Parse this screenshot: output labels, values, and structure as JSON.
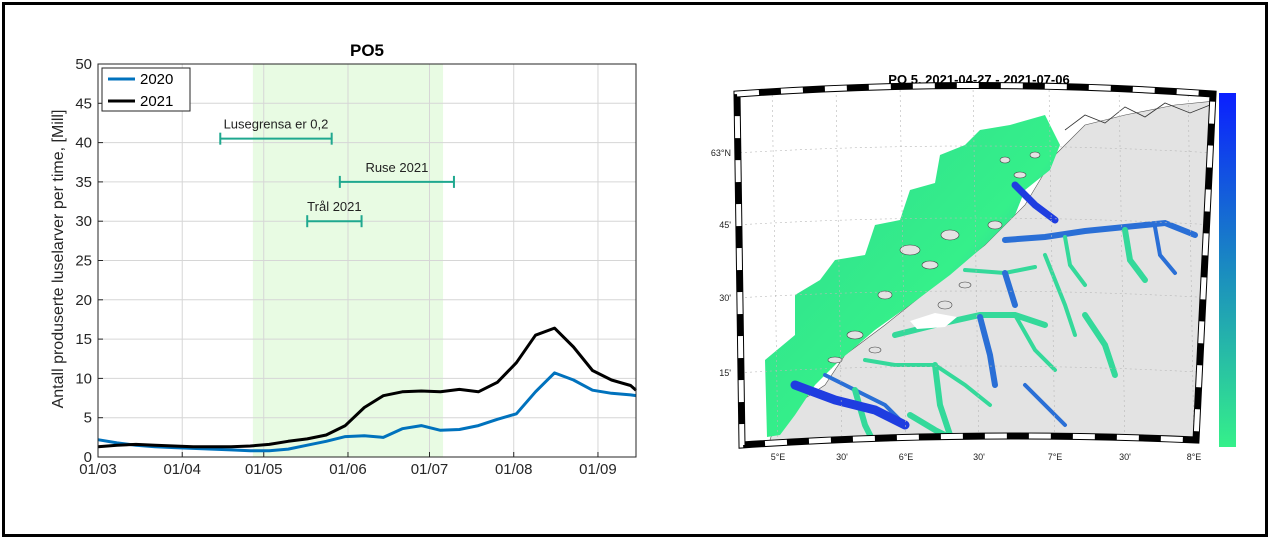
{
  "chart_data": [
    {
      "type": "line",
      "title": "PO5",
      "xlabel": "",
      "ylabel": "Antall produserte luselarver per time, [Mill]",
      "xtick_labels": [
        "01/03",
        "01/04",
        "01/05",
        "01/06",
        "01/07",
        "01/08",
        "01/09"
      ],
      "x_ticks": [
        "03-01",
        "04-01",
        "05-01",
        "06-01",
        "07-01",
        "08-01",
        "09-01"
      ],
      "xlim": [
        "03-01",
        "09-15"
      ],
      "ylim": [
        0,
        50
      ],
      "yticks": [
        0,
        5,
        10,
        15,
        20,
        25,
        30,
        35,
        40,
        45,
        50
      ],
      "grid": true,
      "legend_position": "top-left",
      "shaded_period": [
        "04-27",
        "07-06"
      ],
      "series": [
        {
          "name": "2020",
          "color": "#0072bd",
          "x": [
            "03-01",
            "03-08",
            "03-15",
            "03-22",
            "03-29",
            "04-05",
            "04-12",
            "04-19",
            "04-26",
            "05-03",
            "05-10",
            "05-17",
            "05-24",
            "05-31",
            "06-07",
            "06-14",
            "06-21",
            "06-28",
            "07-05",
            "07-12",
            "07-19",
            "07-26",
            "08-02",
            "08-09",
            "08-16",
            "08-23",
            "08-30",
            "09-06",
            "09-13",
            "09-15"
          ],
          "values": [
            2.2,
            1.8,
            1.5,
            1.3,
            1.2,
            1.1,
            1.0,
            0.9,
            0.8,
            0.8,
            1.0,
            1.5,
            2.0,
            2.6,
            2.7,
            2.5,
            3.6,
            4.0,
            3.4,
            3.5,
            4.0,
            4.8,
            5.5,
            8.3,
            10.7,
            9.8,
            8.5,
            8.1,
            7.9,
            7.8
          ]
        },
        {
          "name": "2021",
          "color": "#000000",
          "x": [
            "03-01",
            "03-08",
            "03-15",
            "03-22",
            "03-29",
            "04-05",
            "04-12",
            "04-19",
            "04-26",
            "05-03",
            "05-10",
            "05-17",
            "05-24",
            "05-31",
            "06-07",
            "06-14",
            "06-21",
            "06-28",
            "07-05",
            "07-12",
            "07-19",
            "07-26",
            "08-02",
            "08-09",
            "08-16",
            "08-23",
            "08-30",
            "09-06",
            "09-13",
            "09-15"
          ],
          "values": [
            1.3,
            1.5,
            1.6,
            1.5,
            1.4,
            1.3,
            1.3,
            1.3,
            1.4,
            1.6,
            2.0,
            2.3,
            2.8,
            4.0,
            6.3,
            7.8,
            8.3,
            8.4,
            8.3,
            8.6,
            8.3,
            9.5,
            12.0,
            15.5,
            16.4,
            14.0,
            11.0,
            9.8,
            9.1,
            8.5
          ]
        }
      ],
      "intervals": [
        {
          "label": "Lusegrensa er 0,2",
          "start": "04-15",
          "end": "05-26",
          "y": 40.5,
          "color": "#1fa88f"
        },
        {
          "label": "Ruse 2021",
          "start": "05-29",
          "end": "07-10",
          "y": 35.0,
          "color": "#1fa88f"
        },
        {
          "label": "Trål 2021",
          "start": "05-17",
          "end": "06-06",
          "y": 30.0,
          "color": "#1fa88f"
        }
      ]
    },
    {
      "type": "heatmap",
      "title": "PO 5, 2021-04-27 - 2021-07-06",
      "lon_tick_labels": [
        "5°E",
        "30'",
        "6°E",
        "30'",
        "7°E",
        "30'",
        "8°E"
      ],
      "lat_tick_labels": [
        "63°N",
        "45'",
        "30'",
        "15'"
      ],
      "colorbar_colors": [
        "#0b1fff",
        "#1a8cc0",
        "#35f08a"
      ],
      "land_color": "#e3e3e3"
    }
  ]
}
